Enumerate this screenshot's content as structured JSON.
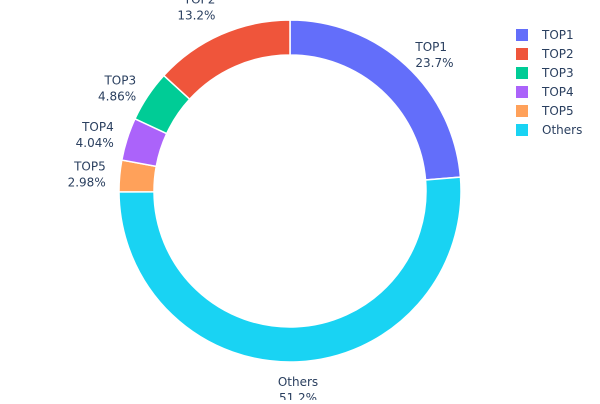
{
  "chart_data": {
    "type": "pie",
    "hole": true,
    "direction": "clockwise",
    "start": "top",
    "slices": [
      {
        "label": "TOP1",
        "value": 23.7,
        "text": "23.7%",
        "color": "#636efa"
      },
      {
        "label": "Others",
        "value": 51.2,
        "text": "51.2%",
        "color": "#19d3f3"
      },
      {
        "label": "TOP5",
        "value": 2.98,
        "text": "2.98%",
        "color": "#FFA15A"
      },
      {
        "label": "TOP4",
        "value": 4.04,
        "text": "4.04%",
        "color": "#ab63fa"
      },
      {
        "label": "TOP3",
        "value": 4.86,
        "text": "4.86%",
        "color": "#00cc96"
      },
      {
        "label": "TOP2",
        "value": 13.2,
        "text": "13.2%",
        "color": "#EF553B"
      }
    ],
    "legend": {
      "placement": "top-right",
      "entries": [
        {
          "label": "TOP1",
          "color": "#636efa"
        },
        {
          "label": "TOP2",
          "color": "#EF553B"
        },
        {
          "label": "TOP3",
          "color": "#00cc96"
        },
        {
          "label": "TOP4",
          "color": "#ab63fa"
        },
        {
          "label": "TOP5",
          "color": "#FFA15A"
        },
        {
          "label": "Others",
          "color": "#19d3f3"
        }
      ]
    }
  }
}
